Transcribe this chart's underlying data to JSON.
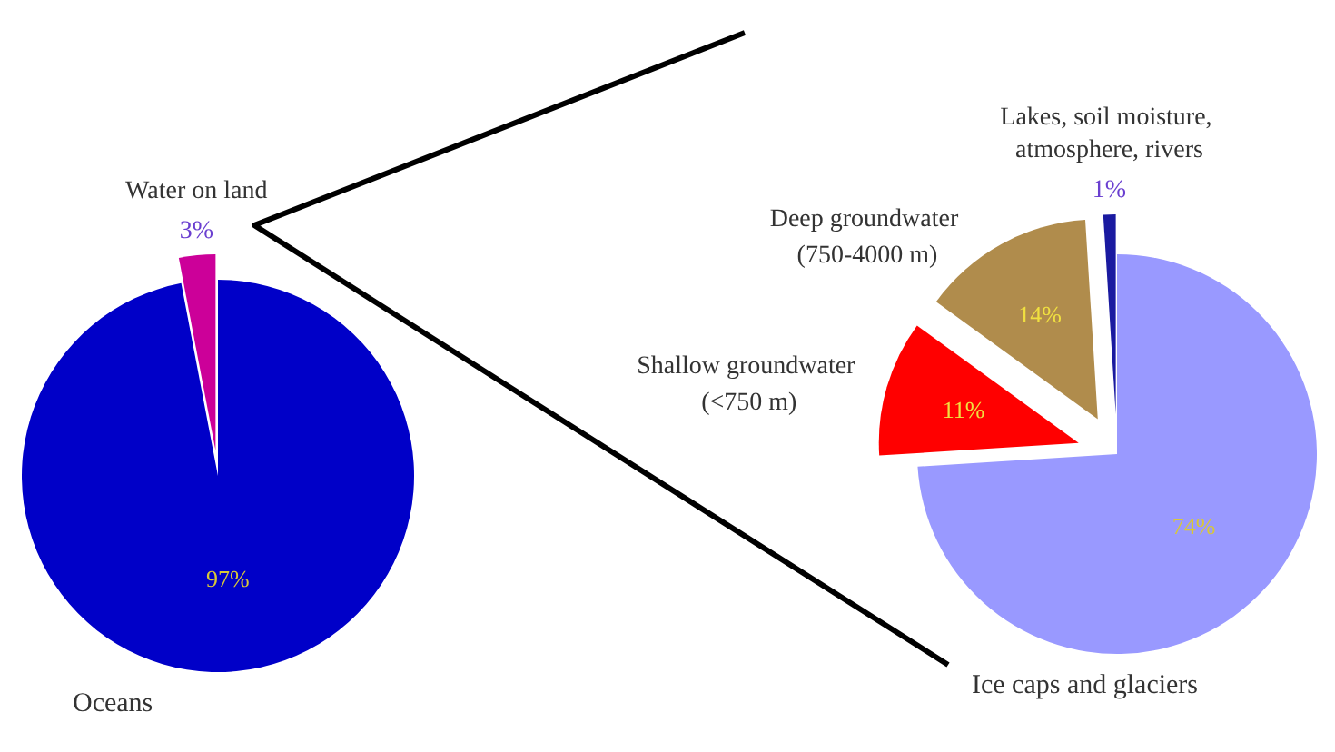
{
  "chart_data": [
    {
      "type": "pie",
      "categories": [
        "Oceans",
        "Water on land"
      ],
      "values": [
        97,
        3
      ],
      "colors": [
        "#0000c8",
        "#cc0099"
      ],
      "value_labels": [
        "97%",
        "3%"
      ]
    },
    {
      "type": "pie",
      "categories": [
        "Ice caps and glaciers",
        "Shallow groundwater (<750 m)",
        "Deep groundwater (750-4000 m)",
        "Lakes, soil moisture, atmosphere, rivers"
      ],
      "values": [
        74,
        11,
        14,
        1
      ],
      "colors": [
        "#9999ff",
        "#ff0000",
        "#b08c4c",
        "#1a1aa0"
      ],
      "value_labels": [
        "74%",
        "11%",
        "14%",
        "1%"
      ]
    }
  ]
}
